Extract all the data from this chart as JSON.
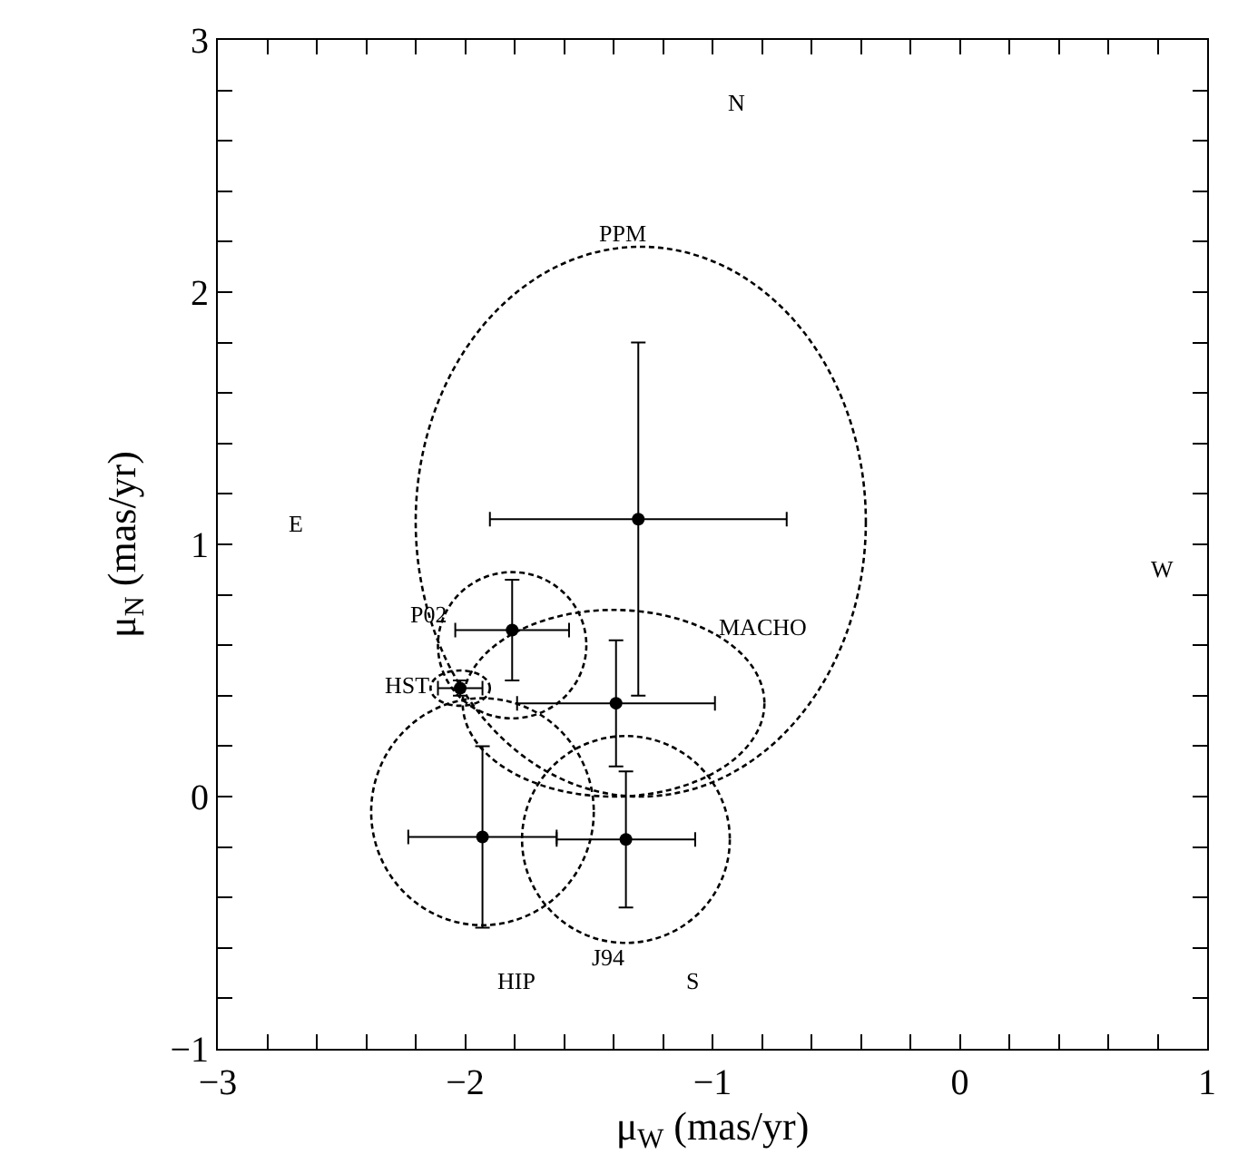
{
  "chart_data": {
    "type": "scatter",
    "xlabel": "μ$_{W}$ (mas/yr)",
    "ylabel": "μ$_{N}$ (mas/yr)",
    "xlim": [
      -3,
      1
    ],
    "ylim": [
      -1,
      3
    ],
    "xticks": [
      -3,
      {
        "value": -2.8,
        "label": null
      },
      {
        "value": -2.6,
        "label": null
      },
      {
        "value": -2.4,
        "label": null
      },
      {
        "value": -2.2,
        "label": null
      },
      -2,
      {
        "value": -1.8,
        "label": null
      },
      {
        "value": -1.6,
        "label": null
      },
      {
        "value": -1.4,
        "label": null
      },
      {
        "value": -1.2,
        "label": null
      },
      -1,
      {
        "value": -0.8,
        "label": null
      },
      {
        "value": -0.6,
        "label": null
      },
      {
        "value": -0.4,
        "label": null
      },
      {
        "value": -0.2,
        "label": null
      },
      0,
      {
        "value": 0.2,
        "label": null
      },
      {
        "value": 0.4,
        "label": null
      },
      {
        "value": 0.6,
        "label": null
      },
      {
        "value": 0.8,
        "label": null
      },
      1
    ],
    "yticks": [
      -1,
      {
        "value": -0.8,
        "label": null
      },
      {
        "value": -0.6,
        "label": null
      },
      {
        "value": -0.4,
        "label": null
      },
      {
        "value": -0.2,
        "label": null
      },
      0,
      {
        "value": 0.2,
        "label": null
      },
      {
        "value": 0.4,
        "label": null
      },
      {
        "value": 0.6,
        "label": null
      },
      {
        "value": 0.8,
        "label": null
      },
      1,
      {
        "value": 1.2,
        "label": null
      },
      {
        "value": 1.4,
        "label": null
      },
      {
        "value": 1.6,
        "label": null
      },
      {
        "value": 1.8,
        "label": null
      },
      2,
      {
        "value": 2.2,
        "label": null
      },
      {
        "value": 2.4,
        "label": null
      },
      {
        "value": 2.6,
        "label": null
      },
      {
        "value": 2.8,
        "label": null
      },
      3
    ],
    "grid": false,
    "series": [
      {
        "color": "#000000",
        "marker": "circle",
        "x": [
          -1.3,
          -1.81,
          -2.02,
          -1.39,
          -1.93,
          -1.35
        ],
        "values": [
          1.1,
          0.66,
          0.43,
          0.37,
          -0.16,
          -0.17
        ],
        "errors": [
          0.7,
          0.2,
          0.03,
          0.25,
          0.36,
          0.27
        ],
        "xerrors": [
          0.6,
          0.23,
          0.09,
          0.4,
          0.3,
          0.28
        ]
      }
    ],
    "annotations": [
      "PPM",
      "P02",
      "HST",
      "MACHO",
      "HIP",
      "J94",
      "N",
      "E",
      "W",
      "S"
    ]
  }
}
